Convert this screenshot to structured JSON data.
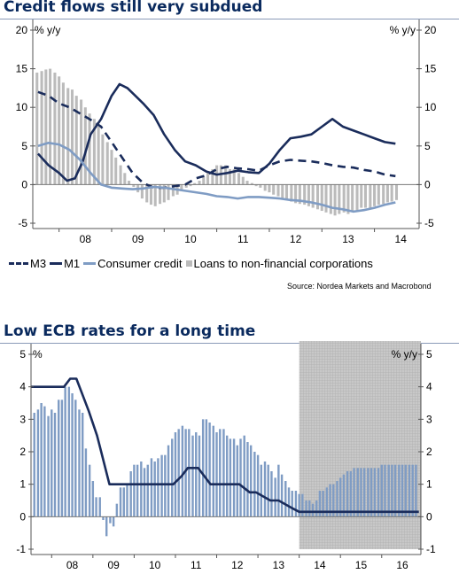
{
  "chart_data": [
    {
      "type": "line",
      "title": "Credit flows still very subdued",
      "ylabel_left": "% y/y",
      "ylabel_right": "% y/y",
      "ylim": [
        -5,
        20
      ],
      "yticks": [
        "-5",
        "0",
        "5",
        "10",
        "15",
        "20"
      ],
      "xlim": [
        2007.5,
        2014.85
      ],
      "xtick_labels": [
        "08",
        "09",
        "10",
        "11",
        "12",
        "13",
        "14"
      ],
      "legend": [
        "M3",
        "M1",
        "Consumer credit",
        "Loans to non-financial corporations"
      ],
      "source": "Source: Nordea Markets and Macrobond",
      "series": [
        {
          "name": "M3",
          "style": "dashed",
          "color": "#1a2c5b",
          "x": [
            2007.6,
            2007.8,
            2008.0,
            2008.2,
            2008.4,
            2008.6,
            2008.8,
            2009.0,
            2009.2,
            2009.4,
            2009.6,
            2009.8,
            2010.0,
            2010.2,
            2010.4,
            2010.6,
            2010.8,
            2011.0,
            2011.2,
            2011.4,
            2011.6,
            2011.8,
            2012.0,
            2012.2,
            2012.4,
            2012.6,
            2012.8,
            2013.0,
            2013.2,
            2013.4,
            2013.6,
            2013.8,
            2014.0,
            2014.2,
            2014.4
          ],
          "y": [
            12,
            11.5,
            10.5,
            10,
            9.2,
            8.4,
            7.5,
            5.5,
            3.5,
            1.5,
            0.2,
            -0.4,
            -0.4,
            -0.2,
            0,
            0.8,
            1.2,
            2.0,
            2.3,
            2.1,
            2.0,
            1.8,
            2.5,
            3.0,
            3.2,
            3.1,
            3.0,
            2.8,
            2.5,
            2.3,
            2.2,
            1.9,
            1.7,
            1.3,
            1.1
          ]
        },
        {
          "name": "M1",
          "style": "solid",
          "color": "#1a2c5b",
          "x": [
            2007.6,
            2007.8,
            2008.0,
            2008.15,
            2008.3,
            2008.45,
            2008.6,
            2008.8,
            2009.0,
            2009.15,
            2009.3,
            2009.45,
            2009.6,
            2009.8,
            2010.0,
            2010.2,
            2010.4,
            2010.6,
            2010.8,
            2011.0,
            2011.2,
            2011.4,
            2011.6,
            2011.8,
            2012.0,
            2012.2,
            2012.4,
            2012.6,
            2012.8,
            2013.0,
            2013.2,
            2013.4,
            2013.6,
            2013.8,
            2014.0,
            2014.2,
            2014.4
          ],
          "y": [
            4.0,
            2.5,
            1.5,
            0.5,
            0.8,
            3.0,
            6.5,
            8.5,
            11.5,
            13.0,
            12.5,
            11.5,
            10.5,
            9.0,
            6.5,
            4.5,
            3.0,
            2.5,
            1.7,
            1.3,
            1.5,
            1.8,
            1.6,
            1.5,
            2.7,
            4.5,
            6.0,
            6.2,
            6.5,
            7.5,
            8.5,
            7.5,
            7.0,
            6.5,
            6.0,
            5.5,
            5.3
          ]
        },
        {
          "name": "Consumer credit",
          "style": "solid",
          "color": "#7f9cc4",
          "x": [
            2007.6,
            2007.8,
            2008.0,
            2008.2,
            2008.4,
            2008.6,
            2008.8,
            2009.0,
            2009.2,
            2009.4,
            2009.6,
            2009.8,
            2010.0,
            2010.2,
            2010.4,
            2010.6,
            2010.8,
            2011.0,
            2011.2,
            2011.4,
            2011.6,
            2011.8,
            2012.0,
            2012.2,
            2012.4,
            2012.6,
            2012.8,
            2013.0,
            2013.2,
            2013.4,
            2013.6,
            2013.8,
            2014.0,
            2014.2,
            2014.4
          ],
          "y": [
            5.0,
            5.4,
            5.2,
            4.5,
            3.2,
            1.5,
            0,
            -0.4,
            -0.5,
            -0.6,
            -0.5,
            -0.3,
            -0.4,
            -0.6,
            -0.8,
            -1.0,
            -1.2,
            -1.5,
            -1.6,
            -1.8,
            -1.6,
            -1.6,
            -1.7,
            -1.8,
            -2.0,
            -2.1,
            -2.3,
            -2.6,
            -3.0,
            -3.2,
            -3.5,
            -3.3,
            -3.0,
            -2.6,
            -2.3
          ]
        },
        {
          "name": "Loans to non-financial corporations",
          "style": "bar",
          "color": "#bbbbbb",
          "x": [
            2007.58,
            2007.67,
            2007.75,
            2007.83,
            2007.92,
            2008.0,
            2008.08,
            2008.17,
            2008.25,
            2008.33,
            2008.42,
            2008.5,
            2008.58,
            2008.67,
            2008.75,
            2008.83,
            2008.92,
            2009.0,
            2009.08,
            2009.17,
            2009.25,
            2009.33,
            2009.42,
            2009.5,
            2009.58,
            2009.67,
            2009.75,
            2009.83,
            2009.92,
            2010.0,
            2010.08,
            2010.17,
            2010.25,
            2010.33,
            2010.42,
            2010.5,
            2010.58,
            2010.67,
            2010.75,
            2010.83,
            2010.92,
            2011.0,
            2011.08,
            2011.17,
            2011.25,
            2011.33,
            2011.42,
            2011.5,
            2011.58,
            2011.67,
            2011.75,
            2011.83,
            2011.92,
            2012.0,
            2012.08,
            2012.17,
            2012.25,
            2012.33,
            2012.42,
            2012.5,
            2012.58,
            2012.67,
            2012.75,
            2012.83,
            2012.92,
            2013.0,
            2013.08,
            2013.17,
            2013.25,
            2013.33,
            2013.42,
            2013.5,
            2013.58,
            2013.67,
            2013.75,
            2013.83,
            2013.92,
            2014.0,
            2014.08,
            2014.17,
            2014.25,
            2014.33,
            2014.42
          ],
          "y": [
            14.5,
            14.7,
            14.9,
            15.0,
            14.5,
            14.0,
            13.2,
            12.5,
            12.3,
            11.5,
            11.0,
            10.0,
            9.2,
            8.5,
            7.5,
            6.5,
            5.5,
            4.5,
            3.5,
            2.5,
            1.5,
            0.5,
            -0.3,
            -1.0,
            -1.8,
            -2.3,
            -2.6,
            -2.8,
            -2.5,
            -2.3,
            -2.0,
            -1.5,
            -1.3,
            -0.8,
            -0.4,
            -0.2,
            0.2,
            0.5,
            1.0,
            1.5,
            2.0,
            2.5,
            2.5,
            2.5,
            2.0,
            2.0,
            1.5,
            1.0,
            0.5,
            0.2,
            -0.2,
            -0.4,
            -0.8,
            -1.0,
            -1.3,
            -1.5,
            -1.8,
            -2.0,
            -2.2,
            -2.4,
            -2.5,
            -2.6,
            -2.8,
            -3.0,
            -3.2,
            -3.4,
            -3.6,
            -3.8,
            -4.0,
            -3.8,
            -3.6,
            -3.8,
            -3.5,
            -3.3,
            -3.0,
            -3.0,
            -3.0,
            -2.8,
            -2.6,
            -2.5,
            -2.3,
            -2.2,
            -2.0
          ]
        }
      ]
    },
    {
      "type": "bar",
      "title": "Low ECB rates for a long time",
      "ylabel_left": "%",
      "ylabel_right": "% y/y",
      "ylim": [
        -1,
        5
      ],
      "yticks": [
        "-1",
        "0",
        "1",
        "2",
        "3",
        "4",
        "5"
      ],
      "xlim": [
        2007.5,
        2016.95
      ],
      "xtick_labels": [
        "08",
        "09",
        "10",
        "11",
        "12",
        "13",
        "14",
        "15",
        "16"
      ],
      "forecast_shade_from": 2014.0,
      "series": [
        {
          "name": "Bars",
          "style": "bar",
          "color": "#7f9cc4",
          "x": [
            2007.58,
            2007.67,
            2007.75,
            2007.83,
            2007.92,
            2008.0,
            2008.08,
            2008.17,
            2008.25,
            2008.33,
            2008.42,
            2008.5,
            2008.58,
            2008.67,
            2008.75,
            2008.83,
            2008.92,
            2009.0,
            2009.08,
            2009.17,
            2009.25,
            2009.33,
            2009.42,
            2009.5,
            2009.58,
            2009.67,
            2009.75,
            2009.83,
            2009.92,
            2010.0,
            2010.08,
            2010.17,
            2010.25,
            2010.33,
            2010.42,
            2010.5,
            2010.58,
            2010.67,
            2010.75,
            2010.83,
            2010.92,
            2011.0,
            2011.08,
            2011.17,
            2011.25,
            2011.33,
            2011.42,
            2011.5,
            2011.58,
            2011.67,
            2011.75,
            2011.83,
            2011.92,
            2012.0,
            2012.08,
            2012.17,
            2012.25,
            2012.33,
            2012.42,
            2012.5,
            2012.58,
            2012.67,
            2012.75,
            2012.83,
            2012.92,
            2013.0,
            2013.08,
            2013.17,
            2013.25,
            2013.33,
            2013.42,
            2013.5,
            2013.58,
            2013.67,
            2013.75,
            2013.83,
            2013.92,
            2014.0,
            2014.08,
            2014.17,
            2014.25,
            2014.33,
            2014.42,
            2014.5,
            2014.58,
            2014.67,
            2014.75,
            2014.83,
            2014.92,
            2015.0,
            2015.08,
            2015.17,
            2015.25,
            2015.33,
            2015.42,
            2015.5,
            2015.58,
            2015.67,
            2015.75,
            2015.83,
            2015.92,
            2016.0,
            2016.08,
            2016.17,
            2016.25,
            2016.33,
            2016.42,
            2016.5,
            2016.58,
            2016.67,
            2016.75,
            2016.83
          ],
          "y": [
            3.2,
            3.3,
            3.5,
            3.4,
            3.1,
            3.3,
            3.2,
            3.6,
            3.6,
            4.0,
            4.0,
            3.8,
            3.6,
            3.3,
            3.2,
            2.1,
            1.6,
            1.1,
            0.6,
            0.6,
            -0.1,
            -0.6,
            -0.2,
            -0.3,
            0.4,
            0.9,
            0.9,
            1.0,
            1.4,
            1.6,
            1.6,
            1.7,
            1.5,
            1.6,
            1.8,
            1.7,
            1.8,
            1.9,
            1.9,
            2.2,
            2.4,
            2.6,
            2.7,
            2.8,
            2.7,
            2.7,
            2.5,
            2.6,
            2.5,
            3.0,
            3.0,
            2.9,
            2.8,
            2.6,
            2.7,
            2.7,
            2.5,
            2.4,
            2.4,
            2.2,
            2.4,
            2.5,
            2.3,
            2.2,
            2.0,
            1.9,
            1.6,
            1.7,
            1.6,
            1.4,
            1.2,
            1.6,
            1.3,
            1.1,
            0.9,
            0.8,
            0.8,
            0.7,
            0.7,
            0.5,
            0.5,
            0.4,
            0.5,
            0.8,
            0.8,
            0.9,
            1.0,
            1.0,
            1.1,
            1.2,
            1.3,
            1.4,
            1.4,
            1.5,
            1.5,
            1.5,
            1.5,
            1.5,
            1.5,
            1.5,
            1.5,
            1.6,
            1.6,
            1.6,
            1.6,
            1.6,
            1.6,
            1.6,
            1.6,
            1.6,
            1.6,
            1.6
          ]
        },
        {
          "name": "Line",
          "style": "step",
          "color": "#1a2c5b",
          "x": [
            2007.5,
            2008.3,
            2008.45,
            2008.6,
            2008.75,
            2008.9,
            2009.1,
            2009.2,
            2009.4,
            2010.95,
            2011.15,
            2011.3,
            2011.55,
            2011.7,
            2011.85,
            2012.55,
            2012.8,
            2012.95,
            2013.3,
            2013.5,
            2013.85,
            2014.0,
            2016.9
          ],
          "y": [
            4.0,
            4.0,
            4.25,
            4.25,
            3.75,
            3.25,
            2.5,
            2.0,
            1.0,
            1.0,
            1.25,
            1.5,
            1.5,
            1.25,
            1.0,
            1.0,
            0.75,
            0.75,
            0.5,
            0.5,
            0.25,
            0.15,
            0.15
          ]
        }
      ]
    }
  ],
  "legend_labels": {
    "m3": "M3",
    "m1": "M1",
    "consumer": "Consumer credit",
    "loans": "Loans to non-financial corporations"
  }
}
